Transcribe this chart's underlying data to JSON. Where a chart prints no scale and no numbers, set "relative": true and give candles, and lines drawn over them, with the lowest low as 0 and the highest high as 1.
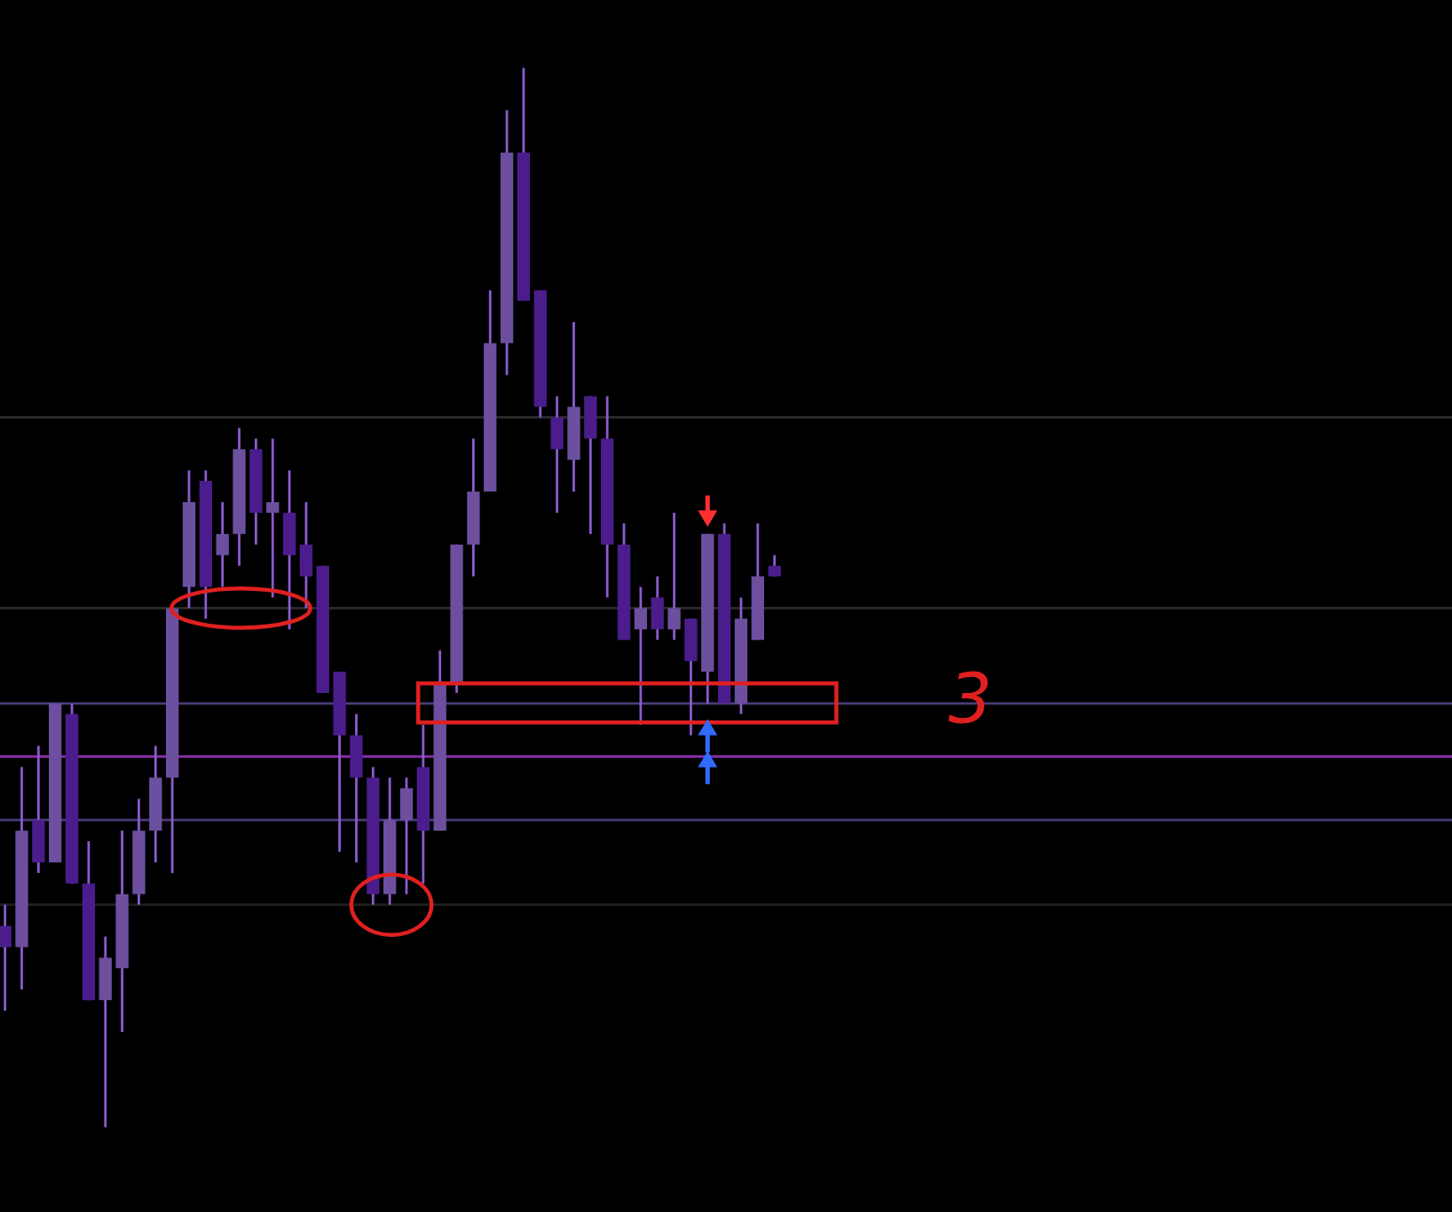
{
  "chart_data": {
    "type": "candlestick",
    "relative": true,
    "categories": [
      null,
      null,
      null,
      null,
      null,
      null,
      null,
      null,
      null,
      null,
      null,
      null,
      null,
      null,
      null,
      null,
      null,
      null,
      null,
      null,
      null,
      null,
      null,
      null,
      null,
      null,
      null,
      null,
      null,
      null,
      null,
      null,
      null,
      null,
      null,
      null,
      null,
      null,
      null,
      null,
      null,
      null,
      null,
      null,
      null,
      null,
      null
    ],
    "ohlc": [
      [
        0.19,
        0.21,
        0.11,
        0.17
      ],
      [
        0.17,
        0.34,
        0.13,
        0.28
      ],
      [
        0.29,
        0.36,
        0.24,
        0.25
      ],
      [
        0.25,
        0.4,
        0.25,
        0.4
      ],
      [
        0.39,
        0.4,
        0.23,
        0.23
      ],
      [
        0.23,
        0.27,
        0.12,
        0.12
      ],
      [
        0.12,
        0.18,
        0.0,
        0.16
      ],
      [
        0.15,
        0.28,
        0.09,
        0.22
      ],
      [
        0.22,
        0.31,
        0.21,
        0.28
      ],
      [
        0.28,
        0.36,
        0.25,
        0.33
      ],
      [
        0.33,
        0.49,
        0.24,
        0.49
      ],
      [
        0.51,
        0.62,
        0.49,
        0.59
      ],
      [
        0.61,
        0.62,
        0.48,
        0.51
      ],
      [
        0.54,
        0.59,
        0.51,
        0.56
      ],
      [
        0.56,
        0.66,
        0.53,
        0.64
      ],
      [
        0.64,
        0.65,
        0.55,
        0.58
      ],
      [
        0.58,
        0.65,
        0.5,
        0.59
      ],
      [
        0.58,
        0.62,
        0.47,
        0.54
      ],
      [
        0.55,
        0.59,
        0.49,
        0.52
      ],
      [
        0.53,
        0.53,
        0.41,
        0.41
      ],
      [
        0.43,
        0.43,
        0.26,
        0.37
      ],
      [
        0.37,
        0.39,
        0.25,
        0.33
      ],
      [
        0.33,
        0.34,
        0.21,
        0.22
      ],
      [
        0.22,
        0.33,
        0.21,
        0.29
      ],
      [
        0.29,
        0.33,
        0.22,
        0.32
      ],
      [
        0.34,
        0.38,
        0.23,
        0.28
      ],
      [
        0.28,
        0.45,
        0.28,
        0.42
      ],
      [
        0.42,
        0.55,
        0.41,
        0.55
      ],
      [
        0.55,
        0.65,
        0.52,
        0.6
      ],
      [
        0.6,
        0.79,
        0.6,
        0.74
      ],
      [
        0.74,
        0.96,
        0.71,
        0.92
      ],
      [
        0.92,
        1.0,
        0.78,
        0.78
      ],
      [
        0.79,
        0.79,
        0.67,
        0.68
      ],
      [
        0.67,
        0.69,
        0.58,
        0.64
      ],
      [
        0.63,
        0.76,
        0.6,
        0.68
      ],
      [
        0.69,
        0.69,
        0.56,
        0.65
      ],
      [
        0.65,
        0.69,
        0.5,
        0.55
      ],
      [
        0.55,
        0.57,
        0.46,
        0.46
      ],
      [
        0.47,
        0.51,
        0.38,
        0.49
      ],
      [
        0.5,
        0.52,
        0.46,
        0.47
      ],
      [
        0.47,
        0.58,
        0.46,
        0.49
      ],
      [
        0.48,
        0.48,
        0.37,
        0.44
      ],
      [
        0.43,
        0.56,
        0.4,
        0.56
      ],
      [
        0.56,
        0.57,
        0.4,
        0.4
      ],
      [
        0.4,
        0.5,
        0.39,
        0.48
      ],
      [
        0.46,
        0.57,
        0.46,
        0.52
      ],
      [
        0.53,
        0.54,
        0.52,
        0.52
      ]
    ],
    "colors": [
      "#4b1d8c",
      "#6c4f9e",
      "#4b1d8c",
      "#6c4f9e",
      "#4b1d8c",
      "#4b1d8c",
      "#6c4f9e",
      "#6c4f9e",
      "#6c4f9e",
      "#6c4f9e",
      "#6c4f9e",
      "#6c4f9e",
      "#4b1d8c",
      "#6c4f9e",
      "#6c4f9e",
      "#4b1d8c",
      "#6c4f9e",
      "#4b1d8c",
      "#4b1d8c",
      "#4b1d8c",
      "#4b1d8c",
      "#4b1d8c",
      "#4b1d8c",
      "#6c4f9e",
      "#6c4f9e",
      "#4b1d8c",
      "#6c4f9e",
      "#6c4f9e",
      "#6c4f9e",
      "#6c4f9e",
      "#6c4f9e",
      "#4b1d8c",
      "#4b1d8c",
      "#4b1d8c",
      "#6c4f9e",
      "#4b1d8c",
      "#4b1d8c",
      "#4b1d8c",
      "#6c4f9e",
      "#4b1d8c",
      "#6c4f9e",
      "#4b1d8c",
      "#6c4f9e",
      "#4b1d8c",
      "#6c4f9e",
      "#6c4f9e",
      "#4b1d8c"
    ],
    "ref_lines": [
      {
        "axis": "y",
        "value": 0.67,
        "color": "#2b2b2b"
      },
      {
        "axis": "y",
        "value": 0.49,
        "color": "#2b2b2b"
      },
      {
        "axis": "y",
        "value": 0.4,
        "color": "#4a3c7a"
      },
      {
        "axis": "y",
        "value": 0.35,
        "color": "#8e2bb0"
      },
      {
        "axis": "y",
        "value": 0.29,
        "color": "#4a3c7a"
      },
      {
        "axis": "y",
        "value": 0.21,
        "color": "#1f1f1f"
      }
    ],
    "annotations": [
      "3"
    ]
  }
}
